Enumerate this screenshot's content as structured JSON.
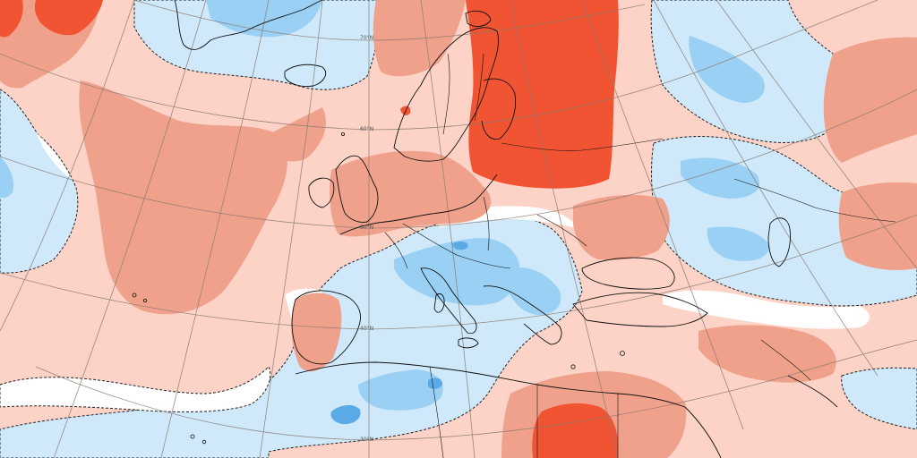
{
  "map": {
    "type": "temperature-anomaly-map",
    "projection": "polar-stereographic",
    "region": "Europe and North Atlantic",
    "latitude_labels": [
      "70°N",
      "60°N",
      "50°N",
      "40°N",
      "30°N"
    ],
    "colors": {
      "strong_warm": "#f05432",
      "moderate_warm": "#f0a18c",
      "mild_warm": "#fcd3c6",
      "neutral": "#ffffff",
      "mild_cold": "#cfe9fb",
      "moderate_cold": "#99d0f3",
      "strong_cold": "#5aaae6",
      "coastline": "#111111",
      "graticule": "#8a7a70"
    }
  }
}
